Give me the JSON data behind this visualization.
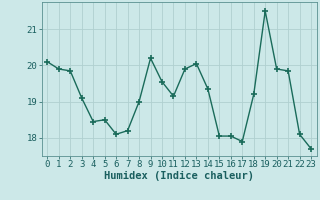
{
  "x": [
    0,
    1,
    2,
    3,
    4,
    5,
    6,
    7,
    8,
    9,
    10,
    11,
    12,
    13,
    14,
    15,
    16,
    17,
    18,
    19,
    20,
    21,
    22,
    23
  ],
  "y": [
    20.1,
    19.9,
    19.85,
    19.1,
    18.45,
    18.5,
    18.1,
    18.2,
    19.0,
    20.2,
    19.55,
    19.15,
    19.9,
    20.05,
    19.35,
    18.05,
    18.05,
    17.9,
    19.2,
    21.5,
    19.9,
    19.85,
    18.1,
    17.7
  ],
  "line_color": "#1a6b5a",
  "marker": "+",
  "bg_color": "#cce8e8",
  "grid_color": "#b0d0d0",
  "xlabel": "Humidex (Indice chaleur)",
  "xlim": [
    -0.5,
    23.5
  ],
  "ylim": [
    17.5,
    21.75
  ],
  "yticks": [
    18,
    19,
    20,
    21
  ],
  "xticks": [
    0,
    1,
    2,
    3,
    4,
    5,
    6,
    7,
    8,
    9,
    10,
    11,
    12,
    13,
    14,
    15,
    16,
    17,
    18,
    19,
    20,
    21,
    22,
    23
  ],
  "xlabel_fontsize": 7.5,
  "tick_fontsize": 6.5,
  "linewidth": 1.0,
  "markersize": 4
}
